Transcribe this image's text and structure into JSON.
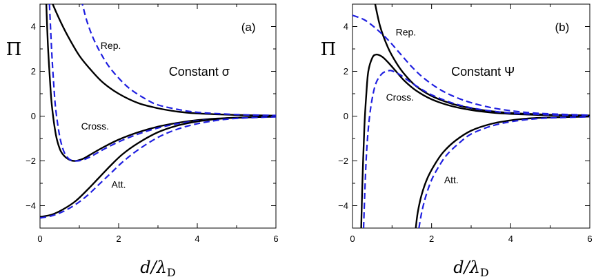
{
  "chart_data": [
    {
      "type": "line",
      "panel": "(a)",
      "condition_label": "Constant σ",
      "ylabel": "Π",
      "xlabel": "d/λD",
      "xlim": [
        0,
        6
      ],
      "ylim": [
        -5,
        5
      ],
      "xticks": [
        0,
        2,
        4,
        6
      ],
      "yticks": [
        -4,
        -2,
        0,
        2,
        4
      ],
      "grid": false,
      "series": [
        {
          "name": "Rep.",
          "style": "solid",
          "color": "#000000",
          "x": [
            0.1,
            0.2,
            0.3,
            0.5,
            0.7,
            1.0,
            1.3,
            1.6,
            2.0,
            2.5,
            3.0,
            3.5,
            4.0,
            5.0,
            6.0
          ],
          "y": [
            6.0,
            5.6,
            5.1,
            4.3,
            3.6,
            2.7,
            2.05,
            1.5,
            1.0,
            0.58,
            0.35,
            0.2,
            0.12,
            0.05,
            0.02
          ]
        },
        {
          "name": "Rep.",
          "style": "dashed",
          "color": "#1f1fe0",
          "x": [
            1.05,
            1.2,
            1.4,
            1.7,
            2.0,
            2.3,
            2.7,
            3.0,
            3.5,
            4.0,
            5.0,
            6.0
          ],
          "y": [
            5.2,
            4.2,
            3.3,
            2.35,
            1.7,
            1.2,
            0.75,
            0.5,
            0.3,
            0.17,
            0.07,
            0.03
          ]
        },
        {
          "name": "Cross.",
          "style": "solid",
          "color": "#000000",
          "x": [
            0.16,
            0.2,
            0.25,
            0.3,
            0.4,
            0.5,
            0.6,
            0.75,
            0.9,
            1.1,
            1.3,
            1.6,
            2.0,
            2.5,
            3.0,
            3.5,
            4.0,
            4.5,
            5.0,
            6.0
          ],
          "y": [
            5.0,
            3.2,
            1.7,
            0.5,
            -0.8,
            -1.45,
            -1.75,
            -1.95,
            -2.0,
            -1.9,
            -1.7,
            -1.4,
            -1.05,
            -0.72,
            -0.47,
            -0.3,
            -0.18,
            -0.11,
            -0.07,
            -0.02
          ]
        },
        {
          "name": "Cross.",
          "style": "dashed",
          "color": "#1f1fe0",
          "x": [
            0.24,
            0.3,
            0.35,
            0.4,
            0.5,
            0.6,
            0.7,
            0.8,
            0.95,
            1.1,
            1.3,
            1.6,
            2.0,
            2.5,
            3.0,
            3.5,
            4.0,
            4.5,
            5.0,
            6.0
          ],
          "y": [
            5.0,
            2.8,
            1.4,
            0.3,
            -0.9,
            -1.55,
            -1.85,
            -1.98,
            -2.0,
            -1.95,
            -1.8,
            -1.5,
            -1.15,
            -0.8,
            -0.53,
            -0.34,
            -0.21,
            -0.13,
            -0.08,
            -0.03
          ]
        },
        {
          "name": "Att.",
          "style": "solid",
          "color": "#000000",
          "x": [
            0.0,
            0.3,
            0.6,
            0.9,
            1.2,
            1.5,
            1.8,
            2.1,
            2.5,
            3.0,
            3.5,
            4.0,
            4.5,
            5.0,
            6.0
          ],
          "y": [
            -4.5,
            -4.4,
            -4.15,
            -3.8,
            -3.3,
            -2.75,
            -2.2,
            -1.7,
            -1.2,
            -0.72,
            -0.42,
            -0.24,
            -0.13,
            -0.07,
            -0.02
          ]
        },
        {
          "name": "Att.",
          "style": "dashed",
          "color": "#1f1fe0",
          "x": [
            0.0,
            0.3,
            0.6,
            0.9,
            1.2,
            1.5,
            1.8,
            2.1,
            2.5,
            3.0,
            3.5,
            4.0,
            4.5,
            5.0,
            6.0
          ],
          "y": [
            -4.55,
            -4.45,
            -4.25,
            -3.95,
            -3.55,
            -3.05,
            -2.55,
            -2.05,
            -1.5,
            -0.95,
            -0.58,
            -0.34,
            -0.19,
            -0.1,
            -0.03
          ]
        }
      ],
      "annotations": [
        {
          "text": "Rep.",
          "x": 1.8,
          "y": 3.0
        },
        {
          "text": "Cross.",
          "x": 1.4,
          "y": -0.6
        },
        {
          "text": "Att.",
          "x": 2.0,
          "y": -3.2
        },
        {
          "text": "(a)",
          "x": 5.3,
          "y": 3.8
        },
        {
          "text": "Constant σ",
          "x": 4.05,
          "y": 1.8
        }
      ]
    },
    {
      "type": "line",
      "panel": "(b)",
      "condition_label": "Constant Ψ",
      "ylabel": "Π",
      "xlabel": "d/λD",
      "xlim": [
        0,
        6
      ],
      "ylim": [
        -5,
        5
      ],
      "xticks": [
        0,
        2,
        4,
        6
      ],
      "yticks": [
        -4,
        -2,
        0,
        2,
        4
      ],
      "grid": false,
      "series": [
        {
          "name": "Rep.",
          "style": "solid",
          "color": "#000000",
          "x": [
            0.55,
            0.7,
            0.9,
            1.1,
            1.3,
            1.6,
            2.0,
            2.5,
            3.0,
            3.5,
            4.0,
            5.0,
            6.0
          ],
          "y": [
            5.2,
            4.0,
            3.05,
            2.4,
            1.9,
            1.35,
            0.9,
            0.56,
            0.35,
            0.22,
            0.14,
            0.06,
            0.03
          ]
        },
        {
          "name": "Rep.",
          "style": "dashed",
          "color": "#1f1fe0",
          "x": [
            0.0,
            0.3,
            0.6,
            0.9,
            1.2,
            1.5,
            1.8,
            2.2,
            2.6,
            3.0,
            3.5,
            4.0,
            4.5,
            5.0,
            6.0
          ],
          "y": [
            4.5,
            4.3,
            3.9,
            3.4,
            2.8,
            2.2,
            1.7,
            1.2,
            0.85,
            0.6,
            0.38,
            0.24,
            0.15,
            0.1,
            0.04
          ]
        },
        {
          "name": "Cross.",
          "style": "solid",
          "color": "#000000",
          "x": [
            0.22,
            0.25,
            0.3,
            0.35,
            0.4,
            0.5,
            0.6,
            0.75,
            0.9,
            1.1,
            1.3,
            1.6,
            2.0,
            2.5,
            3.0,
            3.5,
            4.0,
            5.0,
            6.0
          ],
          "y": [
            -5.0,
            -3.0,
            -0.5,
            1.0,
            2.0,
            2.6,
            2.75,
            2.65,
            2.4,
            2.0,
            1.6,
            1.15,
            0.75,
            0.45,
            0.27,
            0.16,
            0.1,
            0.04,
            0.02
          ]
        },
        {
          "name": "Cross.",
          "style": "dashed",
          "color": "#1f1fe0",
          "x": [
            0.28,
            0.32,
            0.36,
            0.42,
            0.5,
            0.6,
            0.75,
            0.9,
            1.0,
            1.2,
            1.4,
            1.7,
            2.0,
            2.5,
            3.0,
            3.5,
            4.0,
            5.0,
            6.0
          ],
          "y": [
            -5.0,
            -3.0,
            -1.5,
            -0.2,
            0.8,
            1.5,
            1.9,
            2.02,
            2.02,
            1.85,
            1.6,
            1.25,
            0.95,
            0.6,
            0.37,
            0.23,
            0.14,
            0.06,
            0.03
          ]
        },
        {
          "name": "Att.",
          "style": "solid",
          "color": "#000000",
          "x": [
            1.6,
            1.65,
            1.75,
            1.9,
            2.1,
            2.3,
            2.6,
            3.0,
            3.5,
            4.0,
            4.5,
            5.0,
            6.0
          ],
          "y": [
            -5.0,
            -4.3,
            -3.5,
            -2.75,
            -2.1,
            -1.6,
            -1.1,
            -0.65,
            -0.35,
            -0.19,
            -0.1,
            -0.06,
            -0.02
          ]
        },
        {
          "name": "Att.",
          "style": "dashed",
          "color": "#1f1fe0",
          "x": [
            1.68,
            1.75,
            1.85,
            2.0,
            2.2,
            2.4,
            2.7,
            3.0,
            3.5,
            4.0,
            4.5,
            5.0,
            6.0
          ],
          "y": [
            -5.0,
            -4.3,
            -3.6,
            -2.85,
            -2.2,
            -1.7,
            -1.2,
            -0.8,
            -0.45,
            -0.25,
            -0.14,
            -0.08,
            -0.03
          ]
        }
      ],
      "annotations": [
        {
          "text": "Rep.",
          "x": 1.35,
          "y": 3.6
        },
        {
          "text": "Cross.",
          "x": 1.2,
          "y": 0.7
        },
        {
          "text": "Att.",
          "x": 2.5,
          "y": -3.0
        },
        {
          "text": "(b)",
          "x": 5.3,
          "y": 3.8
        },
        {
          "text": "Constant Ψ",
          "x": 3.3,
          "y": 1.8
        }
      ]
    }
  ]
}
